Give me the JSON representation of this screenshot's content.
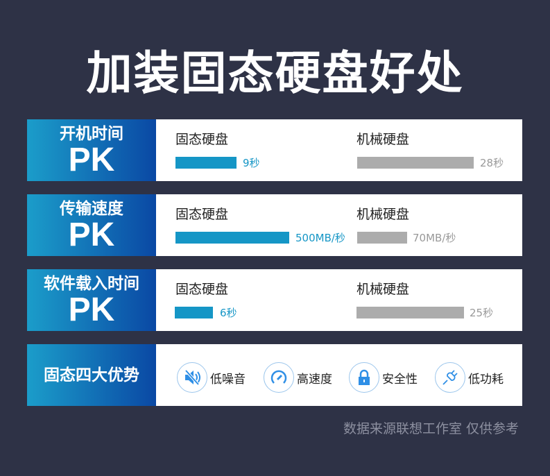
{
  "title": "加装固态硬盘好处",
  "rows": [
    {
      "label": "开机时间",
      "pk": "PK",
      "ssd": {
        "name": "固态硬盘",
        "value": "9秒"
      },
      "hdd": {
        "name": "机械硬盘",
        "value": "28秒"
      }
    },
    {
      "label": "传输速度",
      "pk": "PK",
      "ssd": {
        "name": "固态硬盘",
        "value": "500MB/秒"
      },
      "hdd": {
        "name": "机械硬盘",
        "value": "70MB/秒"
      }
    },
    {
      "label": "软件载入时间",
      "pk": "PK",
      "ssd": {
        "name": "固态硬盘",
        "value": "6秒"
      },
      "hdd": {
        "name": "机械硬盘",
        "value": "25秒"
      }
    }
  ],
  "advantages": {
    "label": "固态四大优势",
    "items": [
      {
        "icon": "speaker-mute-icon",
        "label": "低噪音"
      },
      {
        "icon": "speedometer-icon",
        "label": "高速度"
      },
      {
        "icon": "lock-icon",
        "label": "安全性"
      },
      {
        "icon": "plug-icon",
        "label": "低功耗"
      }
    ]
  },
  "colors": {
    "ssd": "#1596c6",
    "hdd": "#acacac",
    "background": "#2e3246"
  },
  "footer": "数据来源联想工作室  仅供参考"
}
